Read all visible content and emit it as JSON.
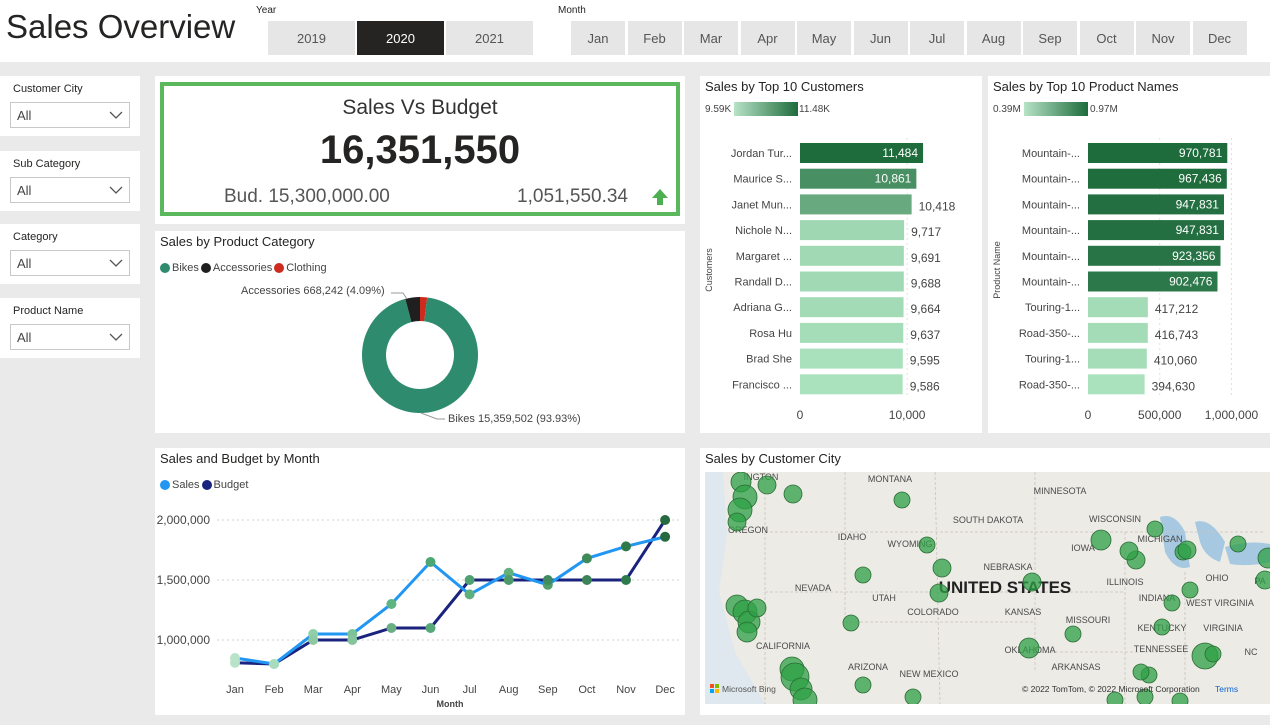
{
  "header": {
    "title": "Sales Overview",
    "year_label": "Year",
    "years": [
      "2019",
      "2020",
      "2021"
    ],
    "selected_year": "2020",
    "month_label": "Month",
    "months": [
      "Jan",
      "Feb",
      "Mar",
      "Apr",
      "May",
      "Jun",
      "Jul",
      "Aug",
      "Sep",
      "Oct",
      "Nov",
      "Dec"
    ]
  },
  "filters": [
    {
      "label": "Customer City",
      "value": "All"
    },
    {
      "label": "Sub Category",
      "value": "All"
    },
    {
      "label": "Category",
      "value": "All"
    },
    {
      "label": "Product Name",
      "value": "All"
    }
  ],
  "kpi": {
    "title": "Sales Vs Budget",
    "value": "16,351,550",
    "budget": "Bud. 15,300,000.00",
    "diff": "1,051,550.34",
    "accent_color": "#5cb85c"
  },
  "category_chart": {
    "title": "Sales by Product Category",
    "legend": [
      {
        "name": "Bikes",
        "color": "#2e8b6e"
      },
      {
        "name": "Accessories",
        "color": "#1f1f1f"
      },
      {
        "name": "Clothing",
        "color": "#cc2b1d"
      }
    ],
    "label_accessories": "Accessories 668,242 (4.09%)",
    "label_bikes": "Bikes 15,359,502 (93.93%)"
  },
  "customers_chart": {
    "title": "Sales by Top 10 Customers",
    "gradient_min": "9.59K",
    "gradient_max": "11.48K",
    "axis_title": "Customers",
    "ticks": [
      "0",
      "10,000"
    ]
  },
  "products_chart": {
    "title": "Sales by Top 10 Product Names",
    "gradient_min": "0.39M",
    "gradient_max": "0.97M",
    "axis_title": "Product Name",
    "ticks": [
      "0",
      "500,000",
      "1,000,000"
    ]
  },
  "month_chart": {
    "title": "Sales and Budget by Month",
    "legend": [
      {
        "name": "Sales",
        "color": "#2196f3"
      },
      {
        "name": "Budget",
        "color": "#1a237e"
      }
    ],
    "y_ticks": [
      "2,000,000",
      "1,500,000",
      "1,000,000"
    ],
    "x_title": "Month"
  },
  "map": {
    "title": "Sales by Customer City",
    "country": "UNITED STATES",
    "states": [
      "MONTANA",
      "MINNESOTA",
      "OREGON",
      "IDAHO",
      "SOUTH DAKOTA",
      "WISCONSIN",
      "WYOMING",
      "IOWA",
      "MICHIGAN",
      "NEBRASKA",
      "NEVADA",
      "UTAH",
      "ILLINOIS",
      "OHIO",
      "INDIANA",
      "COLORADO",
      "KANSAS",
      "MISSOURI",
      "WEST VIRGINIA",
      "KENTUCKY",
      "VIRGINIA",
      "CALIFORNIA",
      "OKLAHOMA",
      "TENNESSEE",
      "ARIZONA",
      "NEW MEXICO",
      "ARKANSAS",
      "NC",
      "INGTON",
      "PA"
    ],
    "attribution": "© 2022 TomTom, © 2022 Microsoft Corporation",
    "terms": "Terms",
    "logo": "Microsoft Bing"
  },
  "chart_data": [
    {
      "type": "pie",
      "title": "Sales by Product Category",
      "categories": [
        "Bikes",
        "Accessories",
        "Clothing"
      ],
      "values": [
        15359502,
        668242,
        323806
      ],
      "colors": [
        "#2e8b6e",
        "#1f1f1f",
        "#cc2b1d"
      ]
    },
    {
      "type": "bar",
      "title": "Sales by Top 10 Customers",
      "categories": [
        "Jordan Tur...",
        "Maurice S...",
        "Janet Mun...",
        "Nichole N...",
        "Margaret ...",
        "Randall D...",
        "Adriana G...",
        "Rosa Hu",
        "Brad She",
        "Francisco ..."
      ],
      "values": [
        11484,
        10861,
        10418,
        9717,
        9691,
        9688,
        9664,
        9637,
        9595,
        9586
      ],
      "value_labels": [
        "11,484",
        "10,861",
        "10,418",
        "9,717",
        "9,691",
        "9,688",
        "9,664",
        "9,637",
        "9,595",
        "9,586"
      ],
      "xlim": [
        0,
        14000
      ],
      "ylabel": "Customers"
    },
    {
      "type": "bar",
      "title": "Sales by Top 10 Product Names",
      "categories": [
        "Mountain-...",
        "Mountain-...",
        "Mountain-...",
        "Mountain-...",
        "Mountain-...",
        "Mountain-...",
        "Touring-1...",
        "Road-350-...",
        "Touring-1...",
        "Road-350-..."
      ],
      "values": [
        970781,
        967436,
        947831,
        947831,
        923356,
        902476,
        417212,
        416743,
        410060,
        394630
      ],
      "value_labels": [
        "970,781",
        "967,436",
        "947,831",
        "947,831",
        "923,356",
        "902,476",
        "417,212",
        "416,743",
        "410,060",
        "394,630"
      ],
      "xlim": [
        0,
        1150000
      ],
      "ylabel": "Product Name"
    },
    {
      "type": "line",
      "title": "Sales and Budget by Month",
      "categories": [
        "Jan",
        "Feb",
        "Mar",
        "Apr",
        "May",
        "Jun",
        "Jul",
        "Aug",
        "Sep",
        "Oct",
        "Nov",
        "Dec"
      ],
      "series": [
        {
          "name": "Sales",
          "color": "#2196f3",
          "values": [
            850000,
            800000,
            1050000,
            1050000,
            1300000,
            1650000,
            1380000,
            1560000,
            1460000,
            1680000,
            1780000,
            1860000
          ]
        },
        {
          "name": "Budget",
          "color": "#1a237e",
          "values": [
            810000,
            800000,
            1000000,
            1000000,
            1100000,
            1100000,
            1500000,
            1500000,
            1500000,
            1500000,
            1500000,
            2000000
          ]
        }
      ],
      "ylim": [
        600000,
        2100000
      ],
      "xlabel": "Month"
    }
  ]
}
